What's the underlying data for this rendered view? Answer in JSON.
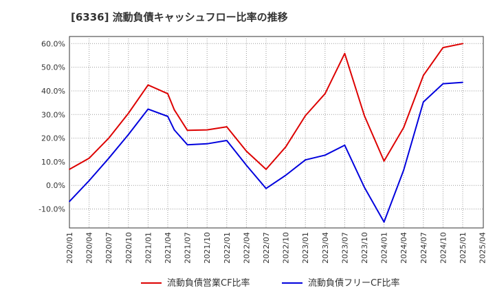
{
  "chart_data": {
    "type": "line",
    "title": "[6336]  流動負債キャッシュフロー比率の推移",
    "xlabel": "",
    "ylabel": "",
    "ylim": [
      -18,
      63
    ],
    "y_ticks": [
      {
        "value": 60,
        "label": "60.0%"
      },
      {
        "value": 50,
        "label": "50.0%"
      },
      {
        "value": 40,
        "label": "40.0%"
      },
      {
        "value": 30,
        "label": "30.0%"
      },
      {
        "value": 20,
        "label": "20.0%"
      },
      {
        "value": 10,
        "label": "10.0%"
      },
      {
        "value": 0,
        "label": "0.0%"
      },
      {
        "value": -10,
        "label": "-10.0%"
      }
    ],
    "x_ticks": [
      "2020/01",
      "2020/04",
      "2020/07",
      "2020/10",
      "2021/01",
      "2021/04",
      "2021/07",
      "2021/10",
      "2022/01",
      "2022/04",
      "2022/07",
      "2022/10",
      "2023/01",
      "2023/04",
      "2023/07",
      "2023/10",
      "2024/01",
      "2024/04",
      "2024/07",
      "2024/10",
      "2025/01",
      "2025/04"
    ],
    "grid": true,
    "legend_position": "bottom",
    "series": [
      {
        "name": "流動負債営業CF比率",
        "color": "#dd0000",
        "points": [
          {
            "x": "2020/01",
            "y": 6.8
          },
          {
            "x": "2020/04",
            "y": 11.5
          },
          {
            "x": "2020/07",
            "y": 20.0
          },
          {
            "x": "2020/10",
            "y": 30.5
          },
          {
            "x": "2021/01",
            "y": 42.5
          },
          {
            "x": "2021/04",
            "y": 38.8
          },
          {
            "x": "2021/05",
            "y": 32.0
          },
          {
            "x": "2021/07",
            "y": 23.3
          },
          {
            "x": "2021/10",
            "y": 23.5
          },
          {
            "x": "2022/01",
            "y": 24.8
          },
          {
            "x": "2022/04",
            "y": 14.5
          },
          {
            "x": "2022/07",
            "y": 6.8
          },
          {
            "x": "2022/10",
            "y": 16.3
          },
          {
            "x": "2023/01",
            "y": 29.5
          },
          {
            "x": "2023/04",
            "y": 38.8
          },
          {
            "x": "2023/07",
            "y": 55.8
          },
          {
            "x": "2023/10",
            "y": 29.5
          },
          {
            "x": "2024/01",
            "y": 10.3
          },
          {
            "x": "2024/04",
            "y": 24.5
          },
          {
            "x": "2024/07",
            "y": 46.5
          },
          {
            "x": "2024/10",
            "y": 58.3
          },
          {
            "x": "2025/01",
            "y": 60.0
          }
        ]
      },
      {
        "name": "流動負債フリーCF比率",
        "color": "#0000dd",
        "points": [
          {
            "x": "2020/01",
            "y": -6.8
          },
          {
            "x": "2020/04",
            "y": 2.0
          },
          {
            "x": "2020/07",
            "y": 11.5
          },
          {
            "x": "2020/10",
            "y": 21.5
          },
          {
            "x": "2021/01",
            "y": 32.3
          },
          {
            "x": "2021/04",
            "y": 29.2
          },
          {
            "x": "2021/05",
            "y": 23.5
          },
          {
            "x": "2021/07",
            "y": 17.2
          },
          {
            "x": "2021/10",
            "y": 17.6
          },
          {
            "x": "2022/01",
            "y": 19.0
          },
          {
            "x": "2022/04",
            "y": 8.5
          },
          {
            "x": "2022/07",
            "y": -1.3
          },
          {
            "x": "2022/10",
            "y": 4.3
          },
          {
            "x": "2023/01",
            "y": 10.8
          },
          {
            "x": "2023/04",
            "y": 12.8
          },
          {
            "x": "2023/07",
            "y": 17.0
          },
          {
            "x": "2023/10",
            "y": -0.8
          },
          {
            "x": "2024/01",
            "y": -15.5
          },
          {
            "x": "2024/04",
            "y": 6.5
          },
          {
            "x": "2024/07",
            "y": 35.3
          },
          {
            "x": "2024/10",
            "y": 43.0
          },
          {
            "x": "2025/01",
            "y": 43.6
          }
        ]
      }
    ]
  }
}
